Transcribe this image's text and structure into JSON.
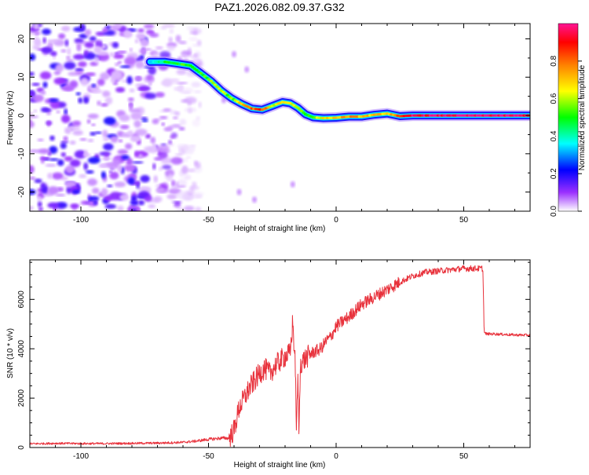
{
  "page_title": "PAZ1.2026.082.09.37.G32",
  "chart_data": [
    {
      "type": "heatmap",
      "title": "PAZ1.2026.082.09.37.G32",
      "xlabel": "Height of straight line (km)",
      "ylabel": "Frequency (Hz)",
      "xlim": [
        -120,
        76
      ],
      "ylim": [
        -25,
        24
      ],
      "x_ticks": [
        -100,
        -50,
        0,
        50
      ],
      "y_ticks": [
        -20,
        -10,
        0,
        10,
        20
      ],
      "colorbar": {
        "label": "Normalized spectral amplitude",
        "range": [
          0,
          1
        ],
        "ticks": [
          0.0,
          0.2,
          0.4,
          0.6,
          0.8
        ],
        "colormap": [
          "#ffffff",
          "#8a2be2",
          "#0000ff",
          "#00ffff",
          "#00ff00",
          "#ffff00",
          "#ff8000",
          "#ff0000",
          "#ff1493"
        ]
      },
      "noise_region_x": [
        -120,
        -57
      ],
      "ridge": {
        "x": [
          -73,
          -67,
          -62,
          -57,
          -53,
          -49,
          -45,
          -41,
          -37,
          -33,
          -29,
          -25,
          -21,
          -18,
          -15,
          -12,
          -9,
          -5,
          0,
          5,
          10,
          15,
          20,
          25,
          30,
          40,
          50,
          60,
          70,
          76
        ],
        "frequency": [
          14,
          14,
          13.5,
          13,
          11,
          9,
          6.5,
          4.5,
          3,
          1.8,
          1.5,
          2.5,
          3.5,
          3.2,
          2,
          0.3,
          -0.5,
          -0.7,
          -0.6,
          -0.3,
          -0.3,
          0.2,
          0.5,
          -0.2,
          0,
          0,
          0,
          0,
          0,
          0
        ],
        "amplitude": [
          0.35,
          0.45,
          0.5,
          0.5,
          0.5,
          0.55,
          0.6,
          0.55,
          0.7,
          0.8,
          0.85,
          0.6,
          0.7,
          0.65,
          0.6,
          0.5,
          0.55,
          0.65,
          0.7,
          0.75,
          0.72,
          0.68,
          0.7,
          0.8,
          0.95,
          0.97,
          0.98,
          0.98,
          0.97,
          0.95
        ]
      }
    },
    {
      "type": "line",
      "xlabel": "Height of straight line (km)",
      "ylabel": "SNR (10 * v/v)",
      "xlim": [
        -120,
        76
      ],
      "ylim": [
        0,
        7600
      ],
      "x_ticks": [
        -100,
        -50,
        0,
        50
      ],
      "y_ticks": [
        0,
        2000,
        4000,
        6000
      ],
      "series": [
        {
          "name": "SNR",
          "color": "#e8323c",
          "x": [
            -120,
            -110,
            -100,
            -90,
            -80,
            -70,
            -60,
            -55,
            -50,
            -45,
            -42,
            -40,
            -38,
            -36,
            -34,
            -32,
            -30,
            -28,
            -26,
            -24,
            -22,
            -20,
            -18,
            -17,
            -16,
            -15.5,
            -15,
            -14.5,
            -14,
            -12,
            -10,
            -8,
            -6,
            -4,
            -2,
            0,
            5,
            10,
            15,
            20,
            25,
            30,
            35,
            40,
            45,
            50,
            55,
            57.5,
            58,
            59,
            62,
            66,
            70,
            76
          ],
          "values": [
            150,
            170,
            160,
            160,
            170,
            180,
            210,
            260,
            330,
            380,
            380,
            700,
            1600,
            2000,
            2400,
            2700,
            3000,
            3200,
            3000,
            3300,
            3500,
            3700,
            3800,
            5100,
            3300,
            600,
            2800,
            600,
            3400,
            3600,
            3800,
            3900,
            4000,
            4300,
            4500,
            4900,
            5300,
            5800,
            6100,
            6400,
            6700,
            6950,
            7100,
            7150,
            7200,
            7250,
            7250,
            7250,
            4650,
            4600,
            4600,
            4580,
            4560,
            4550
          ]
        }
      ]
    }
  ]
}
